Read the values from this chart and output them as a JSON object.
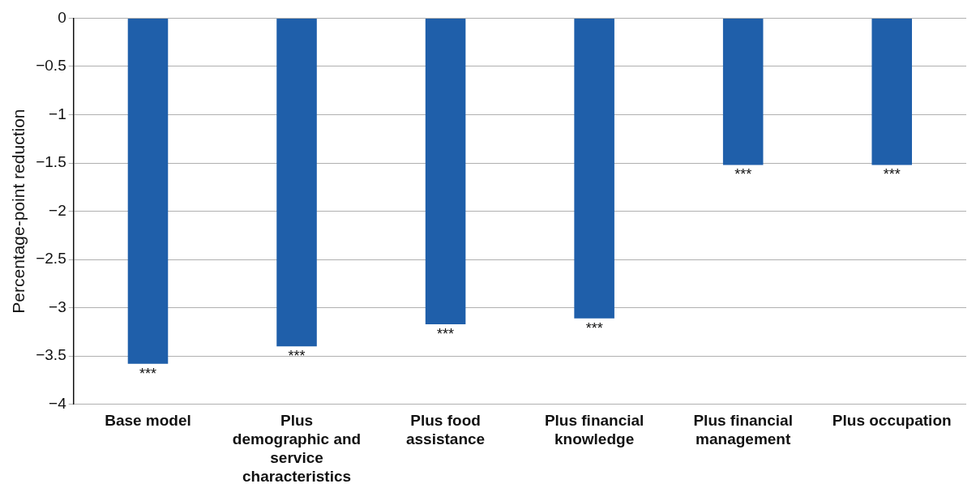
{
  "chart_data": {
    "type": "bar",
    "ylabel": "Percentage-point reduction",
    "categories": [
      "Base model",
      "Plus demographic and service characteristics",
      "Plus food assistance",
      "Plus financial knowledge",
      "Plus financial management",
      "Plus occupation"
    ],
    "values": [
      -3.58,
      -3.4,
      -3.17,
      -3.11,
      -1.52,
      -1.52
    ],
    "color": "#1f5faa",
    "ylim": [
      -4,
      0
    ],
    "yticks": [
      {
        "value": -4,
        "label": "−4"
      },
      {
        "value": -3.5,
        "label": "−3.5"
      },
      {
        "value": -3,
        "label": "−3"
      },
      {
        "value": -2.5,
        "label": "−2.5"
      },
      {
        "value": -2,
        "label": "−2"
      },
      {
        "value": -1.5,
        "label": "−1.5"
      },
      {
        "value": -1,
        "label": "−1"
      },
      {
        "value": -0.5,
        "label": "−0.5"
      },
      {
        "value": 0,
        "label": "0"
      }
    ],
    "grid": "y",
    "legend": false,
    "annotations": [
      {
        "text": "***",
        "x": "Base model",
        "y": -3.58
      },
      {
        "text": "***",
        "x": "Plus demographic and service characteristics",
        "y": -3.4
      },
      {
        "text": "***",
        "x": "Plus food assistance",
        "y": -3.17
      },
      {
        "text": "***",
        "x": "Plus financial knowledge",
        "y": -3.11
      },
      {
        "text": "***",
        "x": "Plus financial management",
        "y": -1.52
      },
      {
        "text": "***",
        "x": "Plus occupation",
        "y": -1.52
      }
    ]
  }
}
